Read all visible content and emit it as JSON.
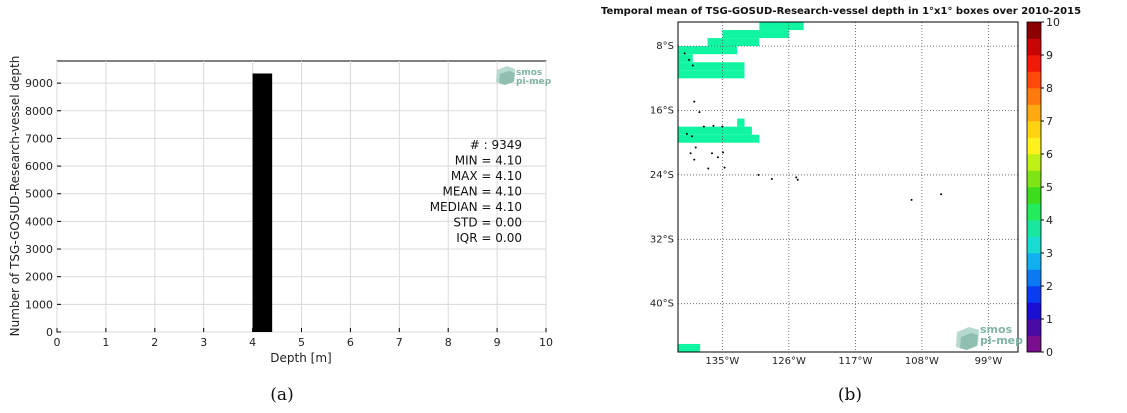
{
  "chart_data": [
    {
      "type": "bar",
      "xlabel": "Depth [m]",
      "ylabel": "Number of TSG-GOSUD-Research-vessel depth",
      "xlim": [
        0,
        10
      ],
      "ylim": [
        0,
        9800
      ],
      "x_ticks": [
        "0",
        "1",
        "2",
        "3",
        "4",
        "5",
        "6",
        "7",
        "8",
        "9",
        "10"
      ],
      "y_ticks": [
        "0",
        "1000",
        "2000",
        "3000",
        "4000",
        "5000",
        "6000",
        "7000",
        "8000",
        "9000"
      ],
      "bars": [
        {
          "x_start": 4.0,
          "x_end": 4.4,
          "value": 9349
        }
      ],
      "grid": true,
      "stats": [
        "# : 9349",
        "MIN = 4.10",
        "MAX =  4.10",
        "MEAN = 4.10",
        "MEDIAN = 4.10",
        "STD = 0.00",
        "IQR = 0.00"
      ],
      "colors": {
        "bar": "#000000",
        "grid": "#d9d9d9"
      },
      "panel_label": "(a)",
      "logo_lines": [
        "smos",
        "pi-mep"
      ]
    },
    {
      "type": "heatmap",
      "title": "Temporal mean of TSG-GOSUD-Research-vessel depth in 1°x1° boxes over 2010-2015",
      "lon_range": [
        -141,
        -95
      ],
      "lat_range": [
        -46,
        -5
      ],
      "lon_ticks": [
        -135,
        -126,
        -117,
        -108,
        -99
      ],
      "lon_tick_labels": [
        "135°W",
        "126°W",
        "117°W",
        "108°W",
        "99°W"
      ],
      "lat_ticks": [
        -8,
        -16,
        -24,
        -32,
        -40
      ],
      "lat_tick_labels": [
        "8°S",
        "16°S",
        "24°S",
        "32°S",
        "40°S"
      ],
      "cell_value": 4.1,
      "cells": [
        {
          "lon": -130,
          "lat": -5,
          "w": 6,
          "h": 1
        },
        {
          "lon": -135,
          "lat": -6,
          "w": 9,
          "h": 1
        },
        {
          "lon": -137,
          "lat": -7,
          "w": 7,
          "h": 1
        },
        {
          "lon": -141,
          "lat": -8,
          "w": 8,
          "h": 1
        },
        {
          "lon": -141,
          "lat": -9,
          "w": 2,
          "h": 1
        },
        {
          "lon": -141,
          "lat": -10,
          "w": 9,
          "h": 1
        },
        {
          "lon": -141,
          "lat": -11,
          "w": 9,
          "h": 1
        },
        {
          "lon": -141,
          "lat": -18,
          "w": 10,
          "h": 1
        },
        {
          "lon": -141,
          "lat": -19,
          "w": 11,
          "h": 1
        },
        {
          "lon": -141,
          "lat": -20,
          "w": 6,
          "h": 0
        },
        {
          "lon": -133,
          "lat": -17,
          "w": 1,
          "h": 1
        },
        {
          "lon": -141,
          "lat": -45,
          "w": 3,
          "h": 1
        },
        {
          "lon": -141,
          "lat": -46,
          "w": 4,
          "h": 1
        }
      ],
      "islands": [
        {
          "lon": -140.1,
          "lat": -8.9
        },
        {
          "lon": -139.5,
          "lat": -9.7
        },
        {
          "lon": -139.0,
          "lat": -10.4
        },
        {
          "lon": -138.8,
          "lat": -14.9
        },
        {
          "lon": -138.1,
          "lat": -16.2
        },
        {
          "lon": -137.5,
          "lat": -18.0
        },
        {
          "lon": -136.2,
          "lat": -17.9
        },
        {
          "lon": -135.0,
          "lat": -18.0
        },
        {
          "lon": -139.8,
          "lat": -18.9
        },
        {
          "lon": -139.1,
          "lat": -19.2
        },
        {
          "lon": -138.6,
          "lat": -20.6
        },
        {
          "lon": -139.3,
          "lat": -21.3
        },
        {
          "lon": -138.8,
          "lat": -22.1
        },
        {
          "lon": -136.4,
          "lat": -21.3
        },
        {
          "lon": -135.6,
          "lat": -21.8
        },
        {
          "lon": -134.9,
          "lat": -21.2
        },
        {
          "lon": -134.7,
          "lat": -23.1
        },
        {
          "lon": -136.9,
          "lat": -23.2
        },
        {
          "lon": -130.1,
          "lat": -24.0
        },
        {
          "lon": -128.3,
          "lat": -24.5
        },
        {
          "lon": -125.0,
          "lat": -24.3
        },
        {
          "lon": -109.4,
          "lat": -27.1
        },
        {
          "lon": -105.4,
          "lat": -26.4
        },
        {
          "lon": -124.8,
          "lat": -24.6
        }
      ],
      "colorbar": {
        "min": 0,
        "max": 10,
        "ticks": [
          "0",
          "1",
          "2",
          "3",
          "4",
          "5",
          "6",
          "7",
          "8",
          "9",
          "10"
        ],
        "colors": [
          "#7a0e8e",
          "#4a0aa5",
          "#1a0fd1",
          "#0a3cf0",
          "#0b78f4",
          "#10b0f0",
          "#18dcd2",
          "#1ae6a0",
          "#22ec5a",
          "#3ddc1c",
          "#7fe414",
          "#bff018",
          "#fff020",
          "#ffd214",
          "#ffa80f",
          "#ff7a0c",
          "#ff4a0a",
          "#f01a08",
          "#c80606",
          "#8c0000"
        ]
      },
      "colors": {
        "cell": "#10f5a2",
        "island": "#000000",
        "grid": "#555555"
      },
      "panel_label": "(b)",
      "logo_lines": [
        "smos",
        "pi-mep"
      ]
    }
  ]
}
